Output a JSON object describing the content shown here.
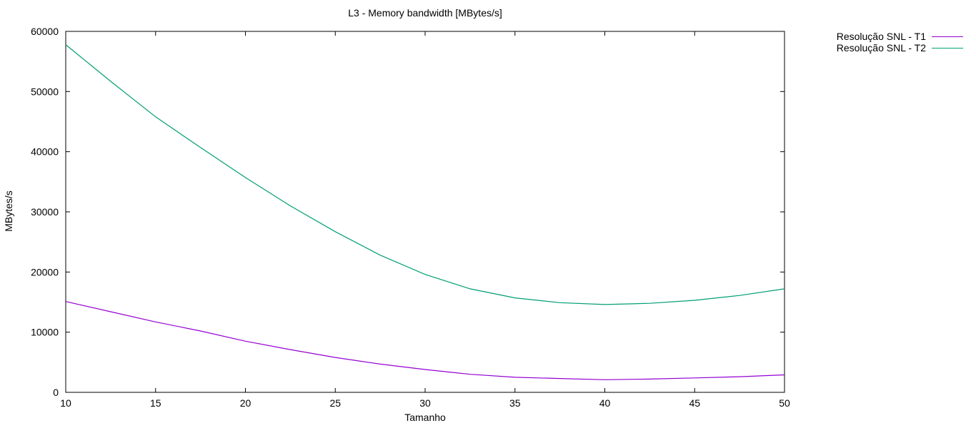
{
  "chart_data": {
    "type": "line",
    "title": "L3 - Memory bandwidth [MBytes/s]",
    "xlabel": "Tamanho",
    "ylabel": "MBytes/s",
    "xlim": [
      10,
      50
    ],
    "ylim": [
      0,
      60000
    ],
    "xticks": [
      10,
      15,
      20,
      25,
      30,
      35,
      40,
      45,
      50
    ],
    "yticks": [
      0,
      10000,
      20000,
      30000,
      40000,
      50000,
      60000
    ],
    "grid": false,
    "legend_position": "top-right-outside",
    "x": [
      10,
      12.5,
      15,
      17.5,
      20,
      22.5,
      25,
      27.5,
      30,
      32.5,
      35,
      37.5,
      40,
      42.5,
      45,
      47.5,
      50
    ],
    "series": [
      {
        "name": "Resolução SNL - T1",
        "color": "#9400d3",
        "values": [
          15100,
          13400,
          11700,
          10200,
          8500,
          7100,
          5800,
          4700,
          3800,
          3000,
          2500,
          2300,
          2100,
          2200,
          2400,
          2600,
          2900
        ]
      },
      {
        "name": "Resolução SNL - T2",
        "color": "#009e73",
        "values": [
          57800,
          51700,
          45800,
          40700,
          35700,
          31000,
          26700,
          22800,
          19600,
          17200,
          15700,
          14900,
          14600,
          14800,
          15300,
          16100,
          17200
        ]
      }
    ]
  }
}
